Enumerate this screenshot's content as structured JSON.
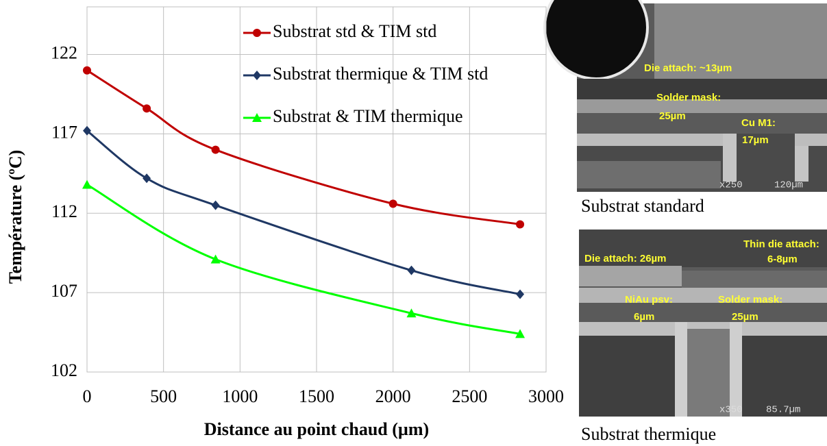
{
  "chart_data": {
    "type": "line",
    "x_label": "Distance au point chaud (µm)",
    "y_label": "Température (ºC)",
    "xlim": [
      0,
      3000
    ],
    "xticks": [
      0,
      500,
      1000,
      1500,
      2000,
      2500,
      3000
    ],
    "ylim": [
      102,
      125
    ],
    "yticks": [
      102,
      107,
      112,
      117,
      122
    ],
    "grid": true,
    "smooth": true,
    "legend": "top-right",
    "series": [
      {
        "name": "Substrat std & TIM std",
        "color": "#c00000",
        "marker": "circle",
        "x": [
          0,
          390,
          840,
          2000,
          2830
        ],
        "values": [
          121,
          118.6,
          116,
          112.6,
          111.3
        ]
      },
      {
        "name": "Substrat thermique & TIM std",
        "color": "#1f3864",
        "marker": "diamond",
        "x": [
          0,
          390,
          840,
          2120,
          2830
        ],
        "values": [
          117.2,
          114.2,
          112.5,
          108.4,
          106.9
        ]
      },
      {
        "name": "Substrat & TIM thermique",
        "color": "#00ff00",
        "marker": "triangle",
        "x": [
          0,
          840,
          2120,
          2830
        ],
        "values": [
          113.8,
          109.1,
          105.7,
          104.4
        ]
      }
    ]
  },
  "images": [
    {
      "caption": "Substrat standard",
      "annotations": [
        "Die attach: ~13µm",
        "Solder mask:",
        "25µm",
        "Cu M1:",
        "17µm",
        "x250",
        "120µm"
      ]
    },
    {
      "caption": "Substrat thermique",
      "annotations": [
        "Thin die attach:",
        "6-8µm",
        "Die attach: 26µm",
        "NiAu psv:",
        "6µm",
        "Solder mask:",
        "25µm",
        "x350",
        "85.7µm"
      ]
    }
  ]
}
